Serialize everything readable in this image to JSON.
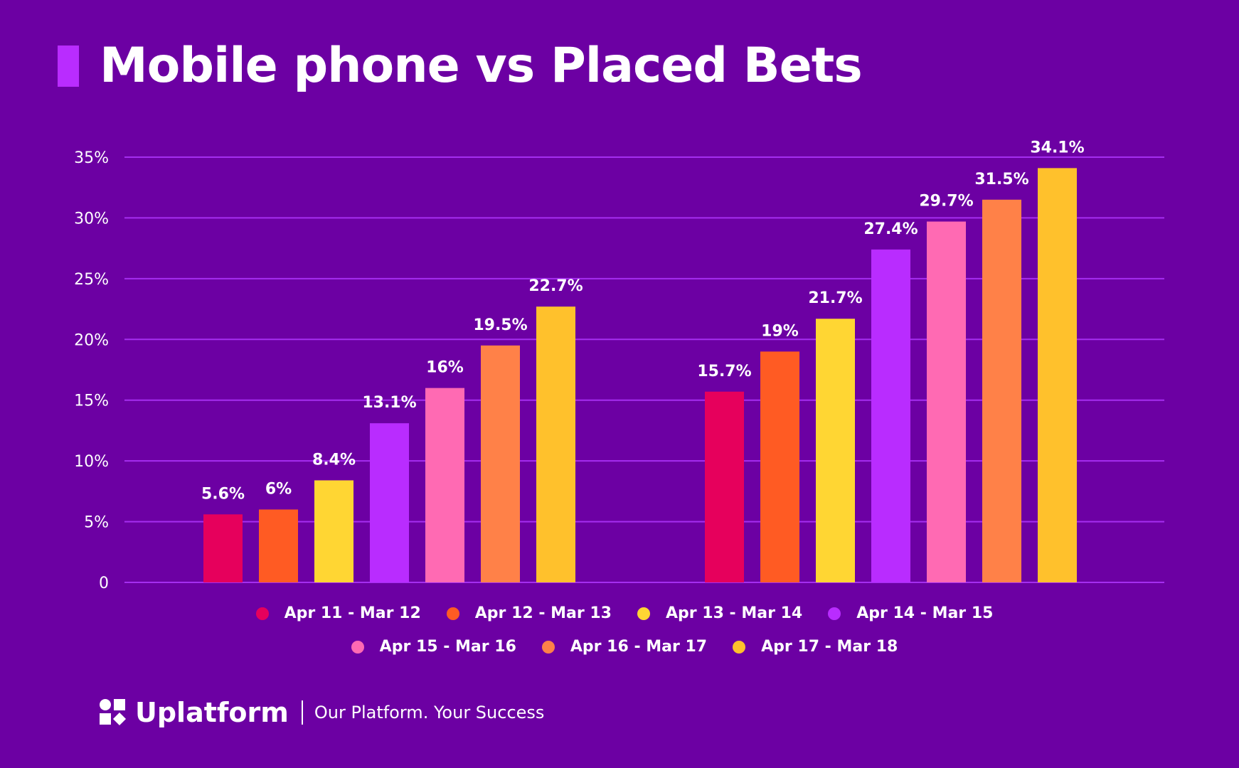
{
  "title": "Mobile phone vs Placed Bets",
  "chart_data": {
    "type": "bar",
    "groups": 2,
    "yticks": [
      "0",
      "5%",
      "10%",
      "15%",
      "20%",
      "25%",
      "30%",
      "35%"
    ],
    "ylim": [
      0,
      35
    ],
    "grid": true,
    "legend_placement": "bottom",
    "series": [
      {
        "name": "Apr 11 - Mar 12",
        "color": "#e6005c",
        "values": [
          5.6,
          15.7
        ],
        "labels": [
          "5.6%",
          "15.7%"
        ]
      },
      {
        "name": "Apr 12 - Mar 13",
        "color": "#ff5b23",
        "values": [
          6,
          19
        ],
        "labels": [
          "6%",
          "19%"
        ]
      },
      {
        "name": "Apr 13 - Mar 14",
        "color": "#ffd633",
        "values": [
          8.4,
          21.7
        ],
        "labels": [
          "8.4%",
          "21.7%"
        ]
      },
      {
        "name": "Apr 14 - Mar 15",
        "color": "#b92cff",
        "values": [
          13.1,
          27.4
        ],
        "labels": [
          "13.1%",
          "27.4%"
        ]
      },
      {
        "name": "Apr 15 - Mar 16",
        "color": "#ff6ab3",
        "values": [
          16,
          29.7
        ],
        "labels": [
          "16%",
          "29.7%"
        ]
      },
      {
        "name": "Apr 16 - Mar 17",
        "color": "#ff8148",
        "values": [
          19.5,
          31.5
        ],
        "labels": [
          "19.5%",
          "31.5%"
        ]
      },
      {
        "name": "Apr 17 - Mar 18",
        "color": "#ffc12c",
        "values": [
          22.7,
          34.1
        ],
        "labels": [
          "22.7%",
          "34.1%"
        ]
      }
    ]
  },
  "footer": {
    "brand": "Uplatform",
    "tagline": "Our Platform. Your Success"
  }
}
